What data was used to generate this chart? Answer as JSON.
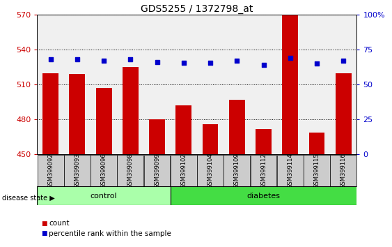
{
  "title": "GDS5255 / 1372798_at",
  "samples": [
    "GSM399092",
    "GSM399093",
    "GSM399096",
    "GSM399098",
    "GSM399099",
    "GSM399102",
    "GSM399104",
    "GSM399109",
    "GSM399112",
    "GSM399114",
    "GSM399115",
    "GSM399116"
  ],
  "counts": [
    520,
    519,
    507,
    525,
    480,
    492,
    476,
    497,
    472,
    572,
    469,
    520
  ],
  "percentiles": [
    68,
    68,
    67,
    68,
    66,
    65.5,
    65.5,
    67,
    64,
    69,
    65,
    67
  ],
  "ylim_left": [
    450,
    570
  ],
  "ylim_right": [
    0,
    100
  ],
  "yticks_left": [
    450,
    480,
    510,
    540,
    570
  ],
  "yticks_right": [
    0,
    25,
    50,
    75,
    100
  ],
  "ytick_right_labels": [
    "0",
    "25",
    "50",
    "75",
    "100%"
  ],
  "control_count": 5,
  "diabetes_count": 7,
  "control_color": "#aaffaa",
  "diabetes_color": "#44dd44",
  "bar_color": "#CC0000",
  "dot_color": "#0000CC",
  "grid_color": "#000000",
  "plot_bg_color": "#f0f0f0",
  "label_box_color": "#cccccc",
  "left_tick_color": "#CC0000",
  "right_tick_color": "#0000CC",
  "legend_count_label": "count",
  "legend_percentile_label": "percentile rank within the sample",
  "disease_state_label": "disease state",
  "control_label": "control",
  "diabetes_label": "diabetes",
  "title_fontsize": 10,
  "tick_fontsize": 8,
  "label_fontsize": 6,
  "disease_fontsize": 8,
  "legend_fontsize": 7.5
}
